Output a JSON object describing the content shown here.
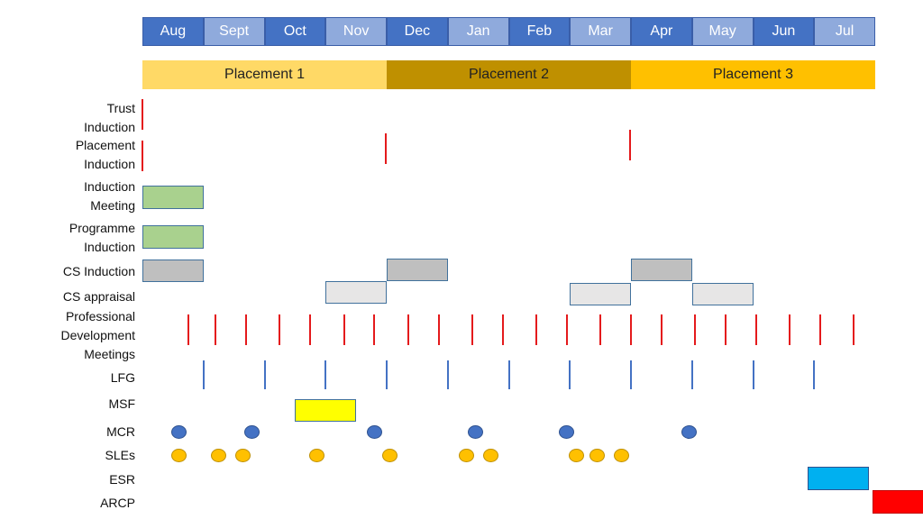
{
  "months": [
    {
      "label": "Aug",
      "color": "#4472c4"
    },
    {
      "label": "Sept",
      "color": "#8faadc"
    },
    {
      "label": "Oct",
      "color": "#4472c4"
    },
    {
      "label": "Nov",
      "color": "#8faadc"
    },
    {
      "label": "Dec",
      "color": "#4472c4"
    },
    {
      "label": "Jan",
      "color": "#8faadc"
    },
    {
      "label": "Feb",
      "color": "#4472c4"
    },
    {
      "label": "Mar",
      "color": "#8faadc"
    },
    {
      "label": "Apr",
      "color": "#4472c4"
    },
    {
      "label": "May",
      "color": "#8faadc"
    },
    {
      "label": "Jun",
      "color": "#4472c4"
    },
    {
      "label": "Jul",
      "color": "#8faadc"
    }
  ],
  "placements": [
    {
      "label": "Placement 1",
      "color": "#ffd966",
      "start_month": 0,
      "end_month": 4
    },
    {
      "label": "Placement 2",
      "color": "#bf9000",
      "start_month": 4,
      "end_month": 8
    },
    {
      "label": "Placement 3",
      "color": "#ffc000",
      "start_month": 8,
      "end_month": 12
    }
  ],
  "rows": [
    {
      "label": "Trust\nInduction"
    },
    {
      "label": "Placement\nInduction"
    },
    {
      "label": "Induction\nMeeting"
    },
    {
      "label": "Programme\nInduction"
    },
    {
      "label": "CS Induction"
    },
    {
      "label": "CS appraisal"
    },
    {
      "label": "Professional\nDevelopment\nMeetings"
    },
    {
      "label": "LFG"
    },
    {
      "label": "MSF"
    },
    {
      "label": "MCR"
    },
    {
      "label": "SLEs"
    },
    {
      "label": "ESR"
    },
    {
      "label": "ARCP"
    }
  ],
  "colors": {
    "red_marker": "#e41a1c",
    "blue_marker": "#4472c4",
    "green_box": "#a9d18e",
    "grey_box": "#bfbfbf",
    "light_grey_box": "#e7e6e6",
    "msf_box": "#ffff00",
    "esr_box": "#00b0f0",
    "arcp_box": "#ff0000",
    "mcr_dot": "#4472c4",
    "sle_dot": "#ffc000"
  },
  "events": {
    "trust_induction_months": [
      0
    ],
    "placement_induction_months": [
      0,
      4,
      8
    ],
    "induction_meeting": {
      "start_month": 0,
      "end_month": 1
    },
    "programme_induction": {
      "start_month": 0,
      "end_month": 1
    },
    "cs_induction": [
      {
        "start_month": 0,
        "end_month": 1
      },
      {
        "start_month": 4,
        "end_month": 5
      },
      {
        "start_month": 8,
        "end_month": 9
      }
    ],
    "cs_appraisal": [
      {
        "start_month": 3,
        "end_month": 4
      },
      {
        "start_month": 7,
        "end_month": 8
      },
      {
        "start_month": 9,
        "end_month": 10
      }
    ],
    "pdm_months": [
      0.75,
      1.2,
      1.7,
      2.25,
      2.75,
      3.3,
      3.8,
      4.35,
      4.85,
      5.4,
      5.9,
      6.45,
      6.95,
      7.5,
      8.0,
      8.5,
      9.05,
      9.55,
      10.05,
      10.6,
      11.1,
      11.65
    ],
    "lfg_months": [
      1.0,
      2.0,
      3.0,
      4.0,
      5.0,
      6.0,
      7.0,
      8.0,
      9.0,
      10.0,
      11.0
    ],
    "msf": {
      "start_month": 2.5,
      "end_month": 3.5
    },
    "mcr_months": [
      0.6,
      1.8,
      3.8,
      5.45,
      6.95,
      8.95
    ],
    "sle_months": [
      0.6,
      1.25,
      1.65,
      2.85,
      4.05,
      5.3,
      5.7,
      7.1,
      7.45,
      7.85
    ],
    "esr": {
      "start_month": 10.9,
      "end_month": 11.9
    },
    "arcp": {
      "start_month": 11.95,
      "end_month": 12.95
    }
  }
}
